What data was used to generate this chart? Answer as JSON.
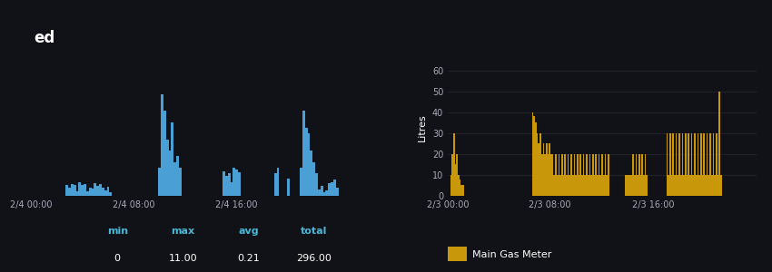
{
  "dark_bg": "#111118",
  "grid_color": "#2a2a3a",
  "left_panel": {
    "title": "ed",
    "title_color": "#ffffff",
    "bar_color": "#4a9fd4",
    "x_ticks": [
      "2/4 00:00",
      "2/4 08:00",
      "2/4 16:00"
    ],
    "stats_labels": [
      "min",
      "max",
      "avg",
      "total"
    ],
    "stats_values": [
      "0",
      "11.00",
      "0.21",
      "296.00"
    ],
    "stats_color": "#4ab8d4",
    "ylim": [
      0,
      12
    ],
    "num_bars": 120
  },
  "right_panel": {
    "ylabel": "Litres",
    "ylabel_color": "#ffffff",
    "bar_color": "#c8980a",
    "x_ticks": [
      "2/3 00:00",
      "2/3 08:00",
      "2/3 16:00"
    ],
    "legend_label": "Main Gas Meter",
    "legend_color": "#c8980a",
    "ylim": [
      0,
      65
    ],
    "yticks": [
      0,
      10,
      20,
      30,
      40,
      50,
      60
    ],
    "num_bars": 200
  }
}
